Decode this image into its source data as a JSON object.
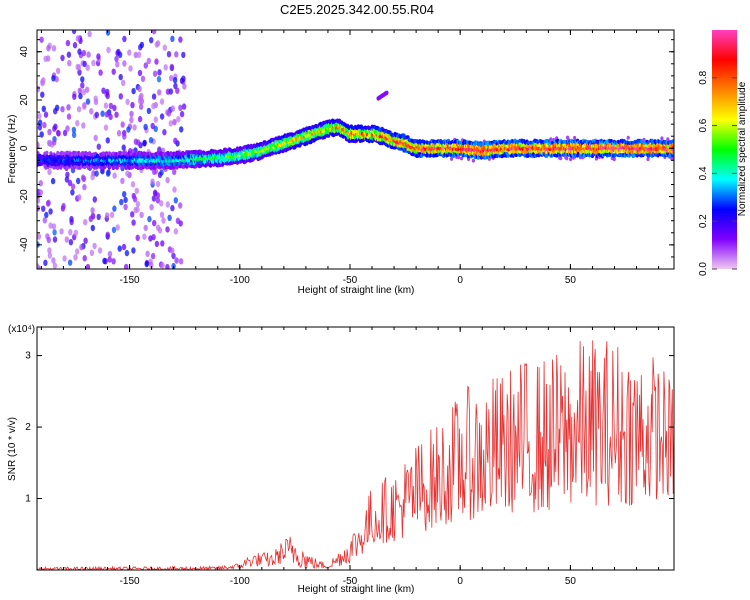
{
  "figure": {
    "title": "C2E5.2025.342.00.55.R04"
  },
  "chart_data": [
    {
      "type": "heatmap",
      "xlabel": "Height of straight line (km)",
      "ylabel": "Frequency (Hz)",
      "xlim": [
        -192,
        97
      ],
      "ylim": [
        -50,
        49
      ],
      "xticks": [
        -150,
        -100,
        -50,
        0,
        50
      ],
      "xtick_labels": [
        "-150",
        "-100",
        "-50",
        "0",
        "50"
      ],
      "yticks": [
        -40,
        -20,
        0,
        20,
        40
      ],
      "ytick_labels": [
        "-40",
        "-20",
        "0",
        "20",
        "40"
      ],
      "colorbar": {
        "label": "Normalized spectral amplitude",
        "range": [
          0,
          1
        ],
        "ticks": [
          0.0,
          0.2,
          0.4,
          0.6,
          0.8
        ],
        "tick_labels": [
          "0.0",
          "0.2",
          "0.4",
          "0.6",
          "0.8"
        ],
        "colors": [
          "#f0c8f0",
          "#8000ff",
          "#0000ff",
          "#00ffff",
          "#00ff00",
          "#ffff00",
          "#ff8000",
          "#ff0000",
          "#ff40c0"
        ]
      },
      "ridge": {
        "x": [
          -192,
          -170,
          -150,
          -130,
          -110,
          -100,
          -90,
          -80,
          -70,
          -60,
          -55,
          -50,
          -40,
          -35,
          -30,
          -25,
          -20,
          -10,
          0,
          10,
          20,
          30,
          40,
          50,
          60,
          70,
          80,
          97
        ],
        "y": [
          -5,
          -5,
          -5,
          -5,
          -4,
          -3,
          -1,
          2,
          5,
          8,
          9,
          6,
          6,
          5,
          3,
          2,
          0,
          0,
          0,
          -1,
          0,
          0,
          0,
          0,
          0,
          0,
          0,
          0
        ],
        "amplitude": [
          0.25,
          0.3,
          0.35,
          0.4,
          0.5,
          0.55,
          0.6,
          0.65,
          0.7,
          0.7,
          0.7,
          0.75,
          0.75,
          0.8,
          0.85,
          0.85,
          0.9,
          0.9,
          0.95,
          0.95,
          0.9,
          0.9,
          0.95,
          0.95,
          0.95,
          0.95,
          0.95,
          0.95
        ]
      },
      "scatter_region": {
        "x_range": [
          -192,
          -125
        ],
        "amplitude_range": [
          0.05,
          0.3
        ]
      },
      "blob": {
        "x": -35,
        "y": 22
      }
    },
    {
      "type": "line",
      "xlabel": "Height of straight line (km)",
      "ylabel": "SNR (10 * v/v)",
      "multiplier": "(x10⁴)",
      "xlim": [
        -192,
        97
      ],
      "ylim": [
        0,
        3.4
      ],
      "xticks": [
        -150,
        -100,
        -50,
        0,
        50
      ],
      "xtick_labels": [
        "-150",
        "-100",
        "-50",
        "0",
        "50"
      ],
      "yticks": [
        1,
        2,
        3
      ],
      "ytick_labels": [
        "1",
        "2",
        "3"
      ],
      "series_color": "#e83030",
      "envelope": {
        "x": [
          -192,
          -110,
          -100,
          -95,
          -85,
          -80,
          -75,
          -70,
          -65,
          -60,
          -55,
          -50,
          -45,
          -40,
          -30,
          -20,
          -10,
          0,
          10,
          20,
          30,
          40,
          50,
          60,
          70,
          80,
          90,
          97
        ],
        "lower": [
          0.0,
          0.0,
          0.02,
          0.05,
          0.05,
          0.1,
          0.05,
          0.02,
          0.02,
          0.02,
          0.05,
          0.1,
          0.2,
          0.35,
          0.4,
          0.5,
          0.6,
          0.7,
          0.7,
          0.8,
          0.8,
          0.8,
          0.9,
          0.9,
          0.9,
          0.9,
          1.0,
          1.0
        ],
        "upper": [
          0.04,
          0.05,
          0.1,
          0.25,
          0.25,
          0.45,
          0.55,
          0.3,
          0.15,
          0.1,
          0.3,
          0.5,
          0.8,
          1.2,
          1.4,
          1.8,
          2.1,
          2.5,
          2.7,
          2.8,
          3.0,
          3.0,
          3.2,
          3.3,
          3.3,
          3.2,
          3.0,
          2.6
        ]
      }
    }
  ]
}
